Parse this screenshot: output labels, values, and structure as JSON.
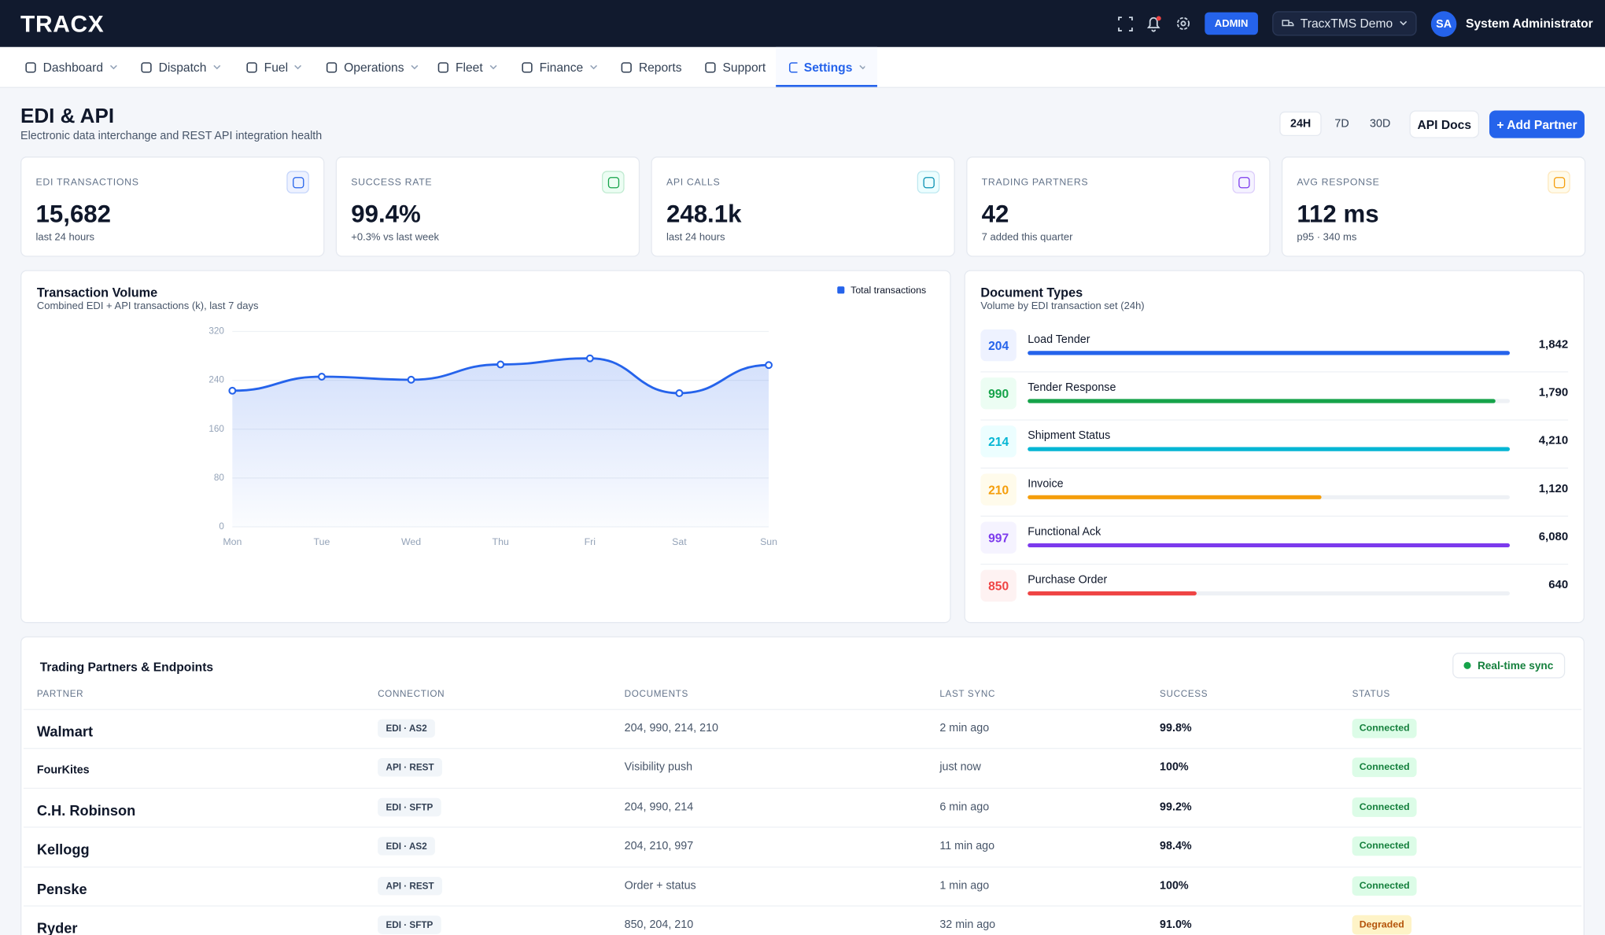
{
  "header": {
    "logo": "TRACX",
    "admin_badge": "ADMIN",
    "workspace": "TracxTMS Demo",
    "avatar": "SA",
    "user": "System Administrator"
  },
  "nav": [
    {
      "label": "Dashboard",
      "menu": true
    },
    {
      "label": "Dispatch",
      "menu": true
    },
    {
      "label": "Fuel",
      "menu": true
    },
    {
      "label": "Operations",
      "menu": true
    },
    {
      "label": "Fleet",
      "menu": true
    },
    {
      "label": "Finance",
      "menu": true
    },
    {
      "label": "Reports",
      "menu": false
    },
    {
      "label": "Support",
      "menu": false
    },
    {
      "label": "Settings",
      "menu": true,
      "active": true
    }
  ],
  "page": {
    "title": "EDI & API",
    "subtitle": "Electronic data interchange and REST API integration health",
    "ranges": [
      "24H",
      "7D",
      "30D"
    ],
    "active_range": 0,
    "api_docs": "API Docs",
    "add_partner": "+ Add Partner"
  },
  "kpis": [
    {
      "label": "EDI TRANSACTIONS",
      "value": "15,682",
      "note": "last 24 hours",
      "color": "#2563eb",
      "bg": "#eef2ff"
    },
    {
      "label": "SUCCESS RATE",
      "value": "99.4%",
      "note": "+0.3% vs last week",
      "color": "#16a34a",
      "bg": "#ecfdf3"
    },
    {
      "label": "API CALLS",
      "value": "248.1k",
      "note": "last 24 hours",
      "color": "#0891b2",
      "bg": "#ecfeff"
    },
    {
      "label": "TRADING PARTNERS",
      "value": "42",
      "note": "7 added this quarter",
      "color": "#7c3aed",
      "bg": "#f5f3ff"
    },
    {
      "label": "AVG RESPONSE",
      "value": "112 ms",
      "note": "p95 · 340 ms",
      "color": "#f59e0b",
      "bg": "#fffbeb"
    }
  ],
  "chart_data": {
    "type": "line",
    "title": "Transaction Volume",
    "subtitle": "Combined EDI + API transactions (k), last 7 days",
    "categories": [
      "Mon",
      "Tue",
      "Wed",
      "Thu",
      "Fri",
      "Sat",
      "Sun"
    ],
    "series": [
      {
        "name": "Total transactions",
        "color": "#2563eb",
        "values": [
          223,
          246,
          241,
          266,
          276,
          219,
          265
        ]
      }
    ],
    "ylim": [
      0,
      320
    ],
    "yticks": [
      0,
      80,
      160,
      240,
      320
    ],
    "grid": true,
    "legend": "top-right"
  },
  "document_types": {
    "title": "Document Types",
    "subtitle": "Volume by EDI transaction set (24h)",
    "rows": [
      {
        "code": "204",
        "name": "Load Tender",
        "count": "1,842",
        "share": 100,
        "color": "#2563eb",
        "bg": "#eef2ff"
      },
      {
        "code": "990",
        "name": "Tender Response",
        "count": "1,790",
        "share": 97,
        "color": "#16a34a",
        "bg": "#ecfdf3"
      },
      {
        "code": "214",
        "name": "Shipment Status",
        "count": "4,210",
        "share": 100,
        "color": "#06b6d4",
        "bg": "#ecfeff"
      },
      {
        "code": "210",
        "name": "Invoice",
        "count": "1,120",
        "share": 61,
        "color": "#f59e0b",
        "bg": "#fffbeb"
      },
      {
        "code": "997",
        "name": "Functional Ack",
        "count": "6,080",
        "share": 100,
        "color": "#7c3aed",
        "bg": "#f5f3ff"
      },
      {
        "code": "850",
        "name": "Purchase Order",
        "count": "640",
        "share": 35,
        "color": "#ef4444",
        "bg": "#fef2f2"
      }
    ]
  },
  "partners": {
    "title": "Trading Partners & Endpoints",
    "sync": "Real-time sync",
    "columns": [
      "PARTNER",
      "CONNECTION",
      "DOCUMENTS",
      "LAST SYNC",
      "SUCCESS",
      "STATUS"
    ],
    "rows": [
      {
        "partner": "Walmart",
        "connection": "EDI · AS2",
        "documents": "204, 990, 214, 210",
        "last_sync": "2 min ago",
        "success": "99.8%",
        "status": "Connected",
        "status_color": "#15803d",
        "status_bg": "#dcfce7"
      },
      {
        "partner": "FourKites",
        "connection": "API · REST",
        "documents": "Visibility push",
        "last_sync": "just now",
        "success": "100%",
        "status": "Connected",
        "status_color": "#15803d",
        "status_bg": "#dcfce7"
      },
      {
        "partner": "C.H. Robinson",
        "connection": "EDI · SFTP",
        "documents": "204, 990, 214",
        "last_sync": "6 min ago",
        "success": "99.2%",
        "status": "Connected",
        "status_color": "#15803d",
        "status_bg": "#dcfce7"
      },
      {
        "partner": "Kellogg",
        "connection": "EDI · AS2",
        "documents": "204, 210, 997",
        "last_sync": "11 min ago",
        "success": "98.4%",
        "status": "Connected",
        "status_color": "#15803d",
        "status_bg": "#dcfce7"
      },
      {
        "partner": "Penske",
        "connection": "API · REST",
        "documents": "Order + status",
        "last_sync": "1 min ago",
        "success": "100%",
        "status": "Connected",
        "status_color": "#15803d",
        "status_bg": "#dcfce7"
      },
      {
        "partner": "Ryder",
        "connection": "EDI · SFTP",
        "documents": "850, 204, 210",
        "last_sync": "32 min ago",
        "success": "91.0%",
        "status": "Degraded",
        "status_color": "#b45309",
        "status_bg": "#fef3c7"
      }
    ]
  }
}
